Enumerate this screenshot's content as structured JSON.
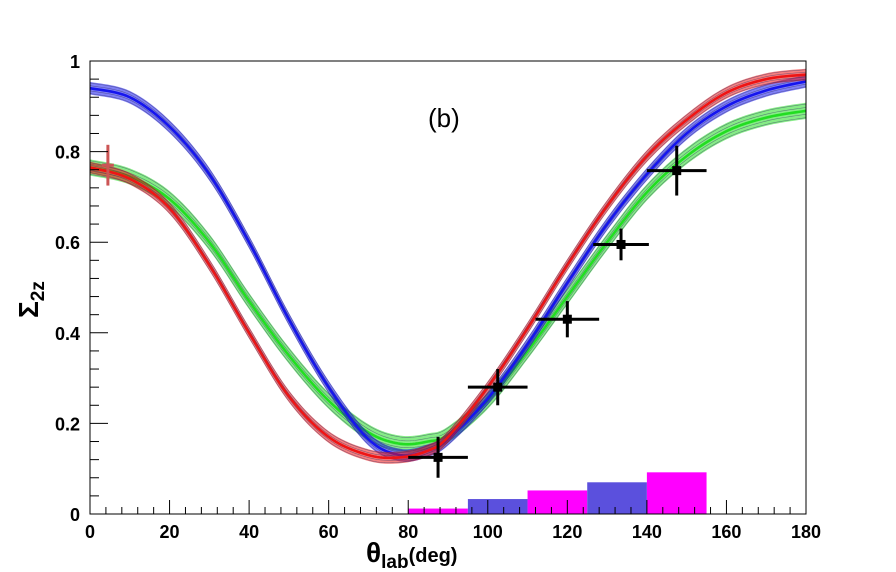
{
  "chart_data": {
    "type": "line",
    "panel_label": "(b)",
    "xlabel_main": "θ",
    "xlabel_sub": "lab",
    "xlabel_unit": "(deg)",
    "ylabel_main": "Σ",
    "ylabel_sub": "2z",
    "xlim": [
      0,
      180
    ],
    "ylim": [
      0,
      1
    ],
    "x_ticks": [
      0,
      20,
      40,
      60,
      80,
      100,
      120,
      140,
      160,
      180
    ],
    "y_ticks": [
      0,
      0.2,
      0.4,
      0.6,
      0.8,
      1
    ],
    "y_tick_labels": [
      "0",
      "0.2",
      "0.4",
      "0.6",
      "0.8",
      "1"
    ],
    "bands": [
      {
        "name": "green band",
        "color": "#22dd22",
        "x": [
          0,
          10,
          20,
          30,
          40,
          50,
          60,
          70,
          78,
          85,
          90,
          100,
          110,
          120,
          130,
          140,
          150,
          160,
          170,
          180
        ],
        "y": [
          0.765,
          0.745,
          0.695,
          0.6,
          0.47,
          0.35,
          0.25,
          0.18,
          0.155,
          0.16,
          0.175,
          0.25,
          0.36,
          0.48,
          0.6,
          0.71,
          0.79,
          0.845,
          0.875,
          0.89
        ],
        "halfwidth": 0.018
      },
      {
        "name": "blue band",
        "color": "#1515ee",
        "x": [
          0,
          10,
          20,
          30,
          40,
          50,
          60,
          70,
          78,
          85,
          90,
          100,
          110,
          120,
          130,
          140,
          150,
          160,
          170,
          180
        ],
        "y": [
          0.94,
          0.92,
          0.855,
          0.75,
          0.6,
          0.43,
          0.28,
          0.165,
          0.13,
          0.14,
          0.165,
          0.255,
          0.375,
          0.51,
          0.64,
          0.75,
          0.84,
          0.9,
          0.935,
          0.955
        ],
        "halfwidth": 0.014
      },
      {
        "name": "red band",
        "color": "#ee1515",
        "x": [
          0,
          10,
          20,
          30,
          40,
          50,
          60,
          70,
          78,
          85,
          90,
          100,
          110,
          120,
          130,
          140,
          150,
          160,
          170,
          180
        ],
        "y": [
          0.765,
          0.74,
          0.675,
          0.55,
          0.4,
          0.26,
          0.17,
          0.13,
          0.125,
          0.14,
          0.17,
          0.28,
          0.41,
          0.55,
          0.68,
          0.79,
          0.87,
          0.93,
          0.96,
          0.97
        ],
        "halfwidth": 0.013
      }
    ],
    "data_points": [
      {
        "x": 87.5,
        "y": 0.125,
        "xerr": 7.5,
        "yerr": 0.045
      },
      {
        "x": 102.5,
        "y": 0.28,
        "xerr": 7.5,
        "yerr": 0.04
      },
      {
        "x": 120,
        "y": 0.43,
        "xerr": 8,
        "yerr": 0.04
      },
      {
        "x": 133.5,
        "y": 0.595,
        "xerr": 7,
        "yerr": 0.035
      },
      {
        "x": 147.5,
        "y": 0.758,
        "xerr": 7.5,
        "yerr": 0.055
      }
    ],
    "reference_point": {
      "x": 4.5,
      "y": 0.77,
      "xerr": 1.5,
      "yerr": 0.045,
      "color": "#cc5555"
    },
    "systematic_bars": [
      {
        "x0": 80,
        "x1": 95,
        "y": 0.012,
        "color": "#ff00ff"
      },
      {
        "x0": 95,
        "x1": 110,
        "y": 0.033,
        "color": "#5b50dd"
      },
      {
        "x0": 110,
        "x1": 125,
        "y": 0.052,
        "color": "#ff00ff"
      },
      {
        "x0": 125,
        "x1": 140,
        "y": 0.07,
        "color": "#5b50dd"
      },
      {
        "x0": 140,
        "x1": 155,
        "y": 0.092,
        "color": "#ff00ff"
      }
    ]
  }
}
